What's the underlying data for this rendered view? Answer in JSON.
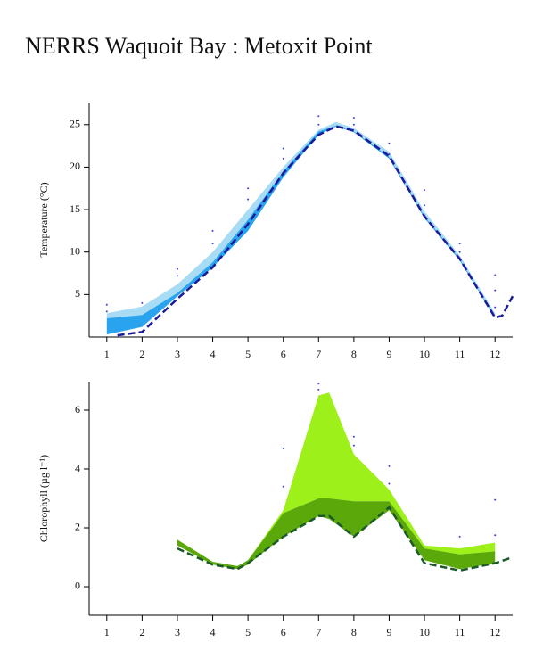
{
  "title": "NERRS Waquoit Bay : Metoxit Point",
  "chart_data": [
    {
      "type": "band-line",
      "ylabel": "Temperature (°C)",
      "xlim": [
        0.5,
        12.5
      ],
      "xticks": [
        1,
        2,
        3,
        4,
        5,
        6,
        7,
        8,
        9,
        10,
        11,
        12
      ],
      "ylim": [
        0,
        27.6
      ],
      "yticks": [
        5,
        10,
        15,
        20,
        25
      ],
      "bands": [
        {
          "color": "#a8dcf5",
          "x": [
            1,
            2,
            3,
            4,
            5,
            6,
            7,
            7.5,
            8,
            9,
            10,
            11,
            12
          ],
          "upper": [
            2.8,
            3.6,
            6.2,
            10,
            15,
            20,
            24.4,
            25.3,
            24.6,
            21.8,
            14.8,
            9.6,
            2.8
          ],
          "lower": [
            2.2,
            2.6,
            5.2,
            8.8,
            13.8,
            19.5,
            24.2,
            24.9,
            24.2,
            21.2,
            14.2,
            9.2,
            2.4
          ]
        },
        {
          "color": "#2aa3ee",
          "x": [
            1,
            2,
            3,
            4,
            5,
            6,
            7,
            7.5,
            8,
            9,
            10,
            11,
            12
          ],
          "upper": [
            2.2,
            2.6,
            5.2,
            8.8,
            13.8,
            19.5,
            24.2,
            24.9,
            24.2,
            21.2,
            14.2,
            9.2,
            2.4
          ],
          "lower": [
            0.3,
            1.2,
            4.8,
            8.2,
            12.5,
            18.8,
            23.8,
            24.8,
            24.1,
            21,
            14,
            9,
            2.3
          ]
        }
      ],
      "line": {
        "color": "#1a1a9a",
        "x": [
          1.3,
          2,
          3,
          4,
          5,
          6,
          7,
          7.5,
          8,
          9,
          10,
          11,
          12,
          12.2,
          12.5
        ],
        "values": [
          0.2,
          0.6,
          4.5,
          8.2,
          13.3,
          19.3,
          23.8,
          24.8,
          24.3,
          21.3,
          14.2,
          9.2,
          2.3,
          2.5,
          4.8
        ]
      },
      "points": {
        "color": "#3344dd",
        "x": [
          1,
          1,
          2,
          3,
          3,
          4,
          4,
          5,
          5,
          6,
          6,
          7,
          7,
          8,
          8,
          9,
          9,
          10,
          10,
          11,
          11,
          12,
          12,
          12
        ],
        "values": [
          3.8,
          3,
          4,
          8,
          7.2,
          12.5,
          11,
          17.5,
          16.2,
          22.2,
          21,
          26,
          25,
          25.8,
          25,
          22.8,
          21.5,
          17.3,
          15.5,
          11,
          10,
          7.3,
          5.5,
          3.5
        ]
      }
    },
    {
      "type": "band-line",
      "ylabel": "Chlorophyll (µg l⁻¹)",
      "xlim": [
        0.5,
        12.5
      ],
      "xticks": [
        1,
        2,
        3,
        4,
        5,
        6,
        7,
        8,
        9,
        10,
        11,
        12
      ],
      "ylim": [
        -0.97,
        6.97
      ],
      "yticks": [
        0,
        2,
        4,
        6
      ],
      "bands": [
        {
          "color": "#9ef01a",
          "x": [
            3,
            4,
            4.7,
            5,
            6,
            7,
            7.3,
            8,
            9,
            10,
            11,
            12
          ],
          "upper": [
            1.6,
            0.85,
            0.7,
            0.9,
            2.6,
            6.5,
            6.6,
            4.5,
            3.3,
            1.4,
            1.3,
            1.5
          ],
          "lower": [
            1.6,
            0.85,
            0.7,
            0.9,
            2.5,
            3.0,
            3.0,
            2.9,
            2.9,
            1.3,
            1.1,
            1.2
          ]
        },
        {
          "color": "#5aa80a",
          "x": [
            3,
            4,
            4.7,
            5,
            6,
            7,
            7.3,
            8,
            9,
            10,
            11,
            12
          ],
          "upper": [
            1.6,
            0.85,
            0.7,
            0.9,
            2.5,
            3.0,
            3.0,
            2.9,
            2.9,
            1.3,
            1.1,
            1.2
          ],
          "lower": [
            1.4,
            0.75,
            0.6,
            0.75,
            1.7,
            2.4,
            2.3,
            1.7,
            2.6,
            0.9,
            0.6,
            0.8
          ]
        }
      ],
      "line": {
        "color": "#1d5a2a",
        "x": [
          3,
          4,
          4.7,
          5,
          6,
          7,
          7.3,
          8,
          9,
          10,
          11,
          12,
          12.5
        ],
        "values": [
          1.3,
          0.75,
          0.6,
          0.8,
          1.7,
          2.4,
          2.4,
          1.7,
          2.7,
          0.8,
          0.55,
          0.8,
          1.0
        ]
      },
      "points": {
        "color": "#3344dd",
        "x": [
          6,
          6,
          7,
          7,
          8,
          8,
          9,
          9,
          11,
          12,
          12
        ],
        "values": [
          4.7,
          3.4,
          6.9,
          6.7,
          5.1,
          4.8,
          4.1,
          3.5,
          1.7,
          2.95,
          1.75
        ]
      }
    }
  ]
}
